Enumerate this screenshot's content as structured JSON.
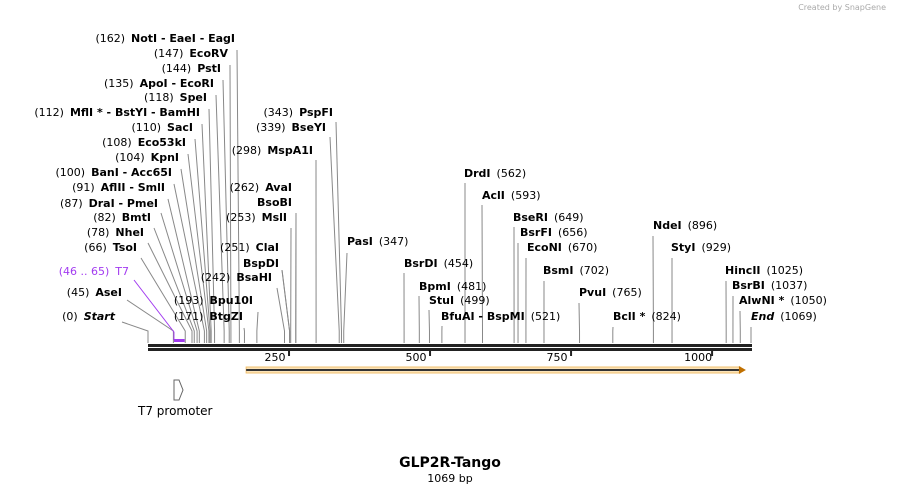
{
  "credit": "Created by SnapGene",
  "title": "GLP2R-Tango",
  "length": "1069 bp",
  "features": [
    {
      "name": "T7",
      "range": "(46 .. 65)",
      "start": 46,
      "end": 65,
      "color": "#a23bf0"
    },
    {
      "name": "T7 promoter",
      "start": 46,
      "end": 65
    },
    {
      "name": "",
      "start": 174,
      "end": 1060,
      "color": "#f0a030"
    }
  ],
  "ticks": [
    {
      "pos": 250,
      "label": "250"
    },
    {
      "pos": 500,
      "label": "500"
    },
    {
      "pos": 750,
      "label": "750"
    },
    {
      "pos": 1000,
      "label": "1000"
    }
  ],
  "sites": [
    {
      "num": "(162)",
      "name": "NotI  - EaeI  - EagI",
      "pos": 162
    },
    {
      "num": "(147)",
      "name": "EcoRV",
      "pos": 147
    },
    {
      "num": "(144)",
      "name": "PstI",
      "pos": 144
    },
    {
      "num": "(135)",
      "name": "ApoI  - EcoRI",
      "pos": 135
    },
    {
      "num": "(118)",
      "name": "SpeI",
      "pos": 118
    },
    {
      "num": "(112)",
      "name": "MflI * - BstYI  - BamHI",
      "pos": 112
    },
    {
      "num": "(110)",
      "name": "SacI",
      "pos": 110
    },
    {
      "num": "(108)",
      "name": "Eco53kI",
      "pos": 108
    },
    {
      "num": "(104)",
      "name": "KpnI",
      "pos": 104
    },
    {
      "num": "(100)",
      "name": "BanI  - Acc65I",
      "pos": 100
    },
    {
      "num": "(91)",
      "name": "AflII  - SmlI",
      "pos": 91
    },
    {
      "num": "(87)",
      "name": "DraI  - PmeI",
      "pos": 87
    },
    {
      "num": "(82)",
      "name": "BmtI",
      "pos": 82
    },
    {
      "num": "(78)",
      "name": "NheI",
      "pos": 78
    },
    {
      "num": "(66)",
      "name": "TsoI",
      "pos": 66
    },
    {
      "num": "(45)",
      "name": "AseI",
      "pos": 45
    },
    {
      "num": "(0)",
      "name": "Start",
      "pos": 0
    },
    {
      "num": "(193)",
      "name": "Bpu10I",
      "pos": 193
    },
    {
      "num": "(171)",
      "name": "BtgZI",
      "pos": 171
    },
    {
      "num": "(242)",
      "name": "BsaHI",
      "pos": 242
    },
    {
      "num": "",
      "name": "BspDI",
      "pos": 251
    },
    {
      "num": "(251)",
      "name": "ClaI",
      "pos": 251
    },
    {
      "num": "(253)",
      "name": "MslI",
      "pos": 253
    },
    {
      "num": "",
      "name": "BsoBI",
      "pos": 262
    },
    {
      "num": "(262)",
      "name": "AvaI",
      "pos": 262
    },
    {
      "num": "(298)",
      "name": "MspA1I",
      "pos": 298
    },
    {
      "num": "(339)",
      "name": "BseYI",
      "pos": 339
    },
    {
      "num": "(343)",
      "name": "PspFI",
      "pos": 343
    },
    {
      "num": "(347)",
      "name": "PasI",
      "pos": 347
    },
    {
      "num": "(454)",
      "name": "BsrDI",
      "pos": 454
    },
    {
      "num": "(481)",
      "name": "BpmI",
      "pos": 481
    },
    {
      "num": "(499)",
      "name": "StuI",
      "pos": 499
    },
    {
      "num": "(521)",
      "name": "BfuAI  - BspMI",
      "pos": 521
    },
    {
      "num": "(562)",
      "name": "DrdI",
      "pos": 562
    },
    {
      "num": "(593)",
      "name": "AclI",
      "pos": 593
    },
    {
      "num": "(649)",
      "name": "BseRI",
      "pos": 649
    },
    {
      "num": "(656)",
      "name": "BsrFI",
      "pos": 656
    },
    {
      "num": "(670)",
      "name": "EcoNI",
      "pos": 670
    },
    {
      "num": "(702)",
      "name": "BsmI",
      "pos": 702
    },
    {
      "num": "(765)",
      "name": "PvuI",
      "pos": 765
    },
    {
      "num": "(824)",
      "name": "BclI *",
      "pos": 824
    },
    {
      "num": "(896)",
      "name": "NdeI",
      "pos": 896
    },
    {
      "num": "(929)",
      "name": "StyI",
      "pos": 929
    },
    {
      "num": "(1025)",
      "name": "HincII",
      "pos": 1025
    },
    {
      "num": "(1037)",
      "name": "BsrBI",
      "pos": 1037
    },
    {
      "num": "(1050)",
      "name": "AlwNI *",
      "pos": 1050
    },
    {
      "num": "(1069)",
      "name": "End",
      "pos": 1069
    }
  ]
}
